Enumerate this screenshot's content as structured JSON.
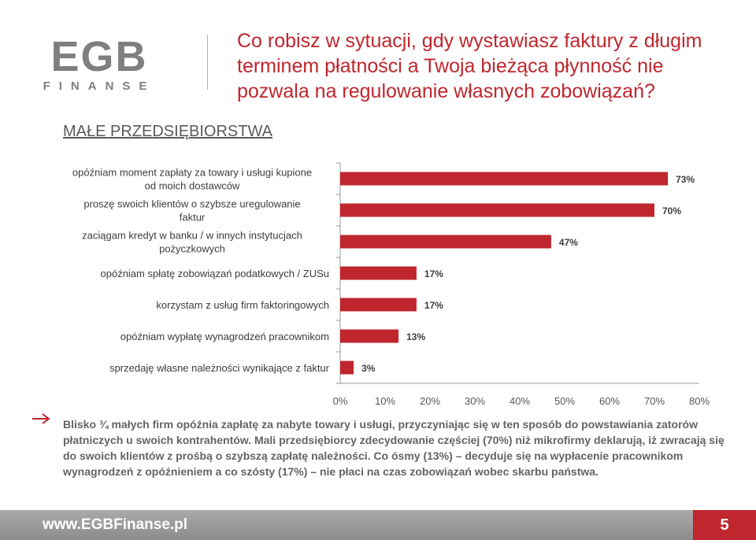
{
  "header": {
    "logo_text": "EGB",
    "logo_subtext": "FINANSE",
    "title": "Co robisz w sytuacji, gdy wystawiasz faktury z długim terminem płatności a Twoja bieżąca płynność nie pozwala na regulowanie własnych zobowiązań?"
  },
  "section_label": "MAŁE PRZEDSIĘBIORSTWA",
  "chart_data": {
    "type": "bar",
    "orientation": "horizontal",
    "categories": [
      "opóźniam moment zapłaty za towary i usługi kupione od moich dostawców",
      "proszę swoich klientów o szybsze uregulowanie faktur",
      "zaciągam kredyt w banku / w innych instytucjach pożyczkowych",
      "opóźniam spłatę zobowiązań podatkowych / ZUSu",
      "korzystam z usług firm faktoringowych",
      "opóźniam wypłatę wynagrodzeń pracownikom",
      "sprzedaję własne należności wynikające z faktur"
    ],
    "values": [
      73,
      70,
      47,
      17,
      17,
      13,
      3
    ],
    "value_labels": [
      "73%",
      "70%",
      "47%",
      "17%",
      "17%",
      "13%",
      "3%"
    ],
    "x_ticks": [
      "0%",
      "10%",
      "20%",
      "30%",
      "40%",
      "50%",
      "60%",
      "70%",
      "80%"
    ],
    "xlim": [
      0,
      80
    ],
    "unit": "%",
    "grid": false,
    "colors": {
      "bar_fill": "#c0262d",
      "label_text": "#3c3c3c",
      "axis": "#9a9a9a"
    }
  },
  "summary": "Blisko ¾ małych firm opóźnia zapłatę za nabyte towary i usługi, przyczyniając się w ten sposób do powstawiania zatorów płatniczych u swoich kontrahentów. Mali przedsiębiorcy zdecydowanie częściej (70%) niż mikrofirmy deklarują, iż zwracają się do swoich klientów z prośbą o szybszą zapłatę należności. Co ósmy (13%) – decyduje się na wypłacenie pracownikom wynagrodzeń z opóźnieniem a co szósty (17%) – nie płaci na czas zobowiązań wobec skarbu państwa.",
  "footer": {
    "url": "www.EGBFinanse.pl",
    "page_number": "5"
  },
  "colors": {
    "accent": "#c0262d",
    "logo_gray": "#7f7f7f"
  }
}
